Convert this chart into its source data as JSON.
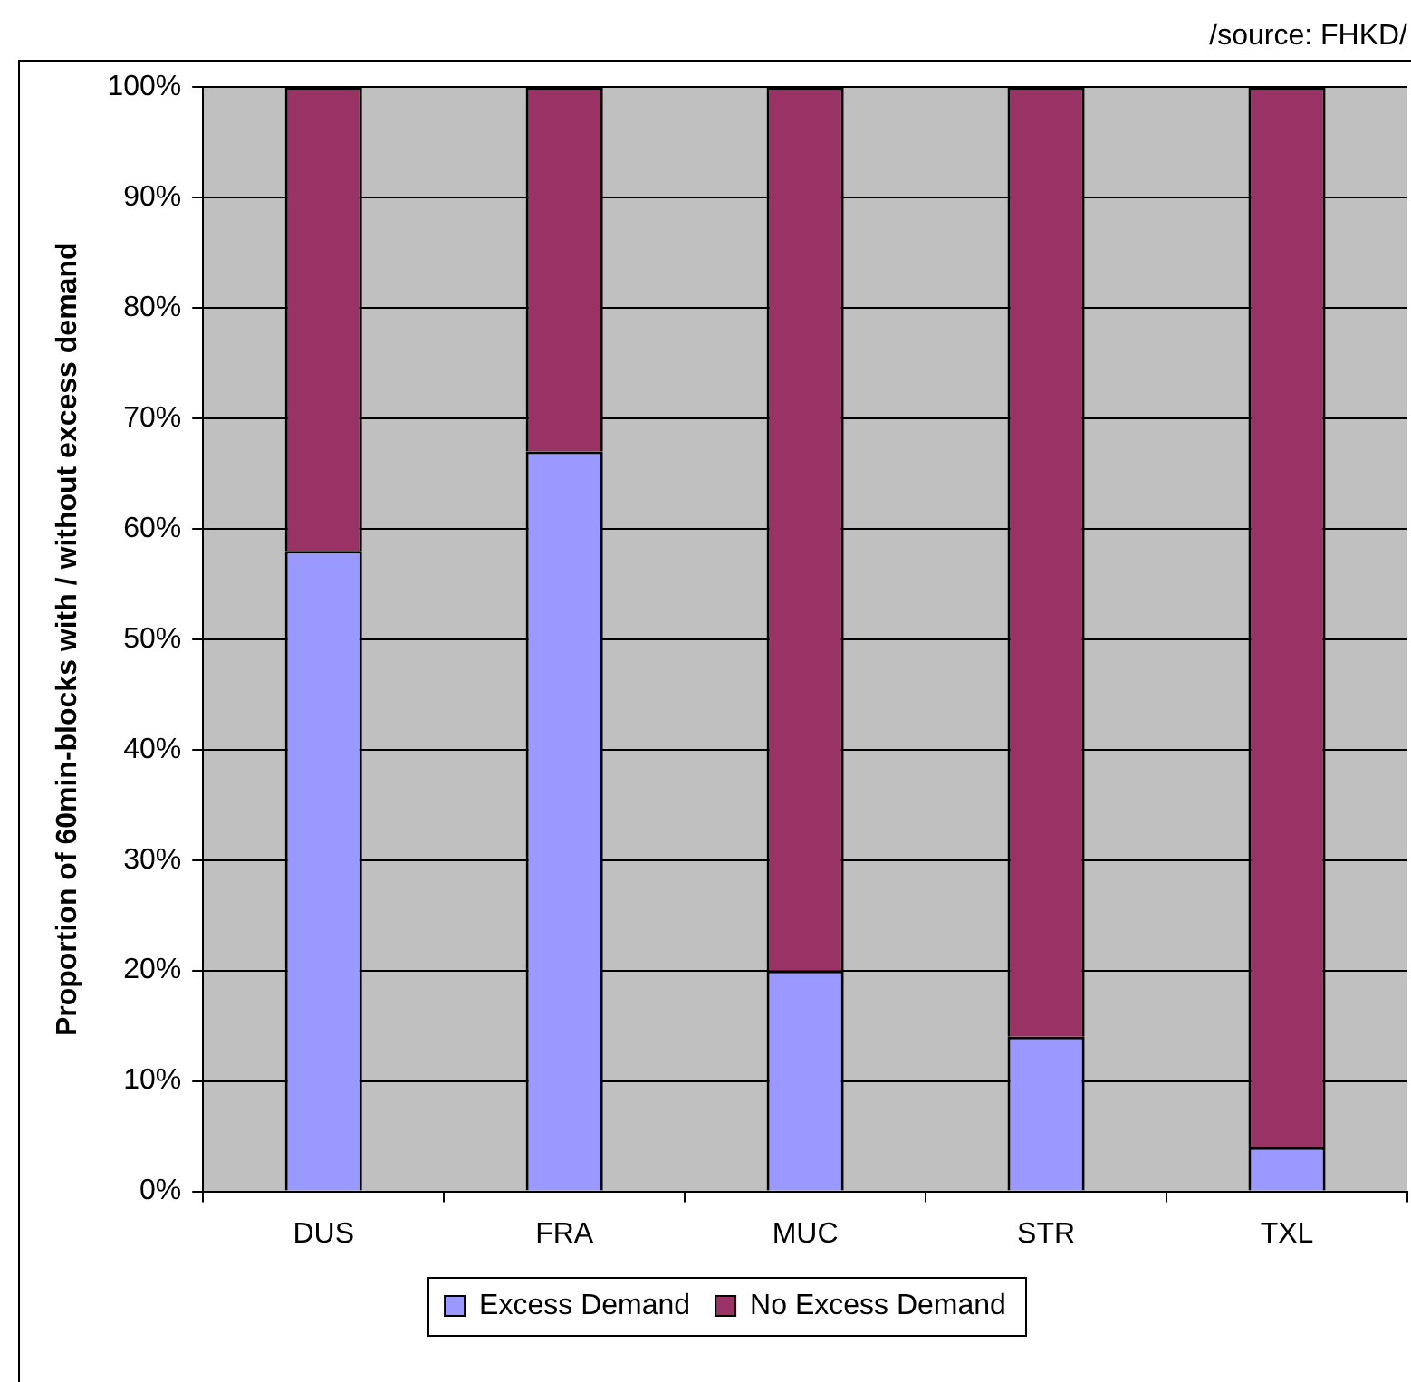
{
  "chart_data": {
    "type": "bar",
    "stacked": true,
    "categories": [
      "DUS",
      "FRA",
      "MUC",
      "STR",
      "TXL"
    ],
    "series": [
      {
        "name": "Excess Demand",
        "color": "#9999ff",
        "values": [
          58,
          67,
          20,
          14,
          4
        ]
      },
      {
        "name": "No Excess Demand",
        "color": "#993366",
        "values": [
          42,
          33,
          80,
          86,
          96
        ]
      }
    ],
    "ylabel": "Proportion of 60min-blocks with / without excess demand",
    "ylim": [
      0,
      100
    ],
    "yticks": [
      {
        "value": 0,
        "label": "0%"
      },
      {
        "value": 10,
        "label": "10%"
      },
      {
        "value": 20,
        "label": "20%"
      },
      {
        "value": 30,
        "label": "30%"
      },
      {
        "value": 40,
        "label": "40%"
      },
      {
        "value": 50,
        "label": "50%"
      },
      {
        "value": 60,
        "label": "60%"
      },
      {
        "value": 70,
        "label": "70%"
      },
      {
        "value": 80,
        "label": "80%"
      },
      {
        "value": 90,
        "label": "90%"
      },
      {
        "value": 100,
        "label": "100%"
      }
    ],
    "grid": "y",
    "legend": "bottom",
    "annotations": [
      "/source: FHKD/"
    ]
  }
}
